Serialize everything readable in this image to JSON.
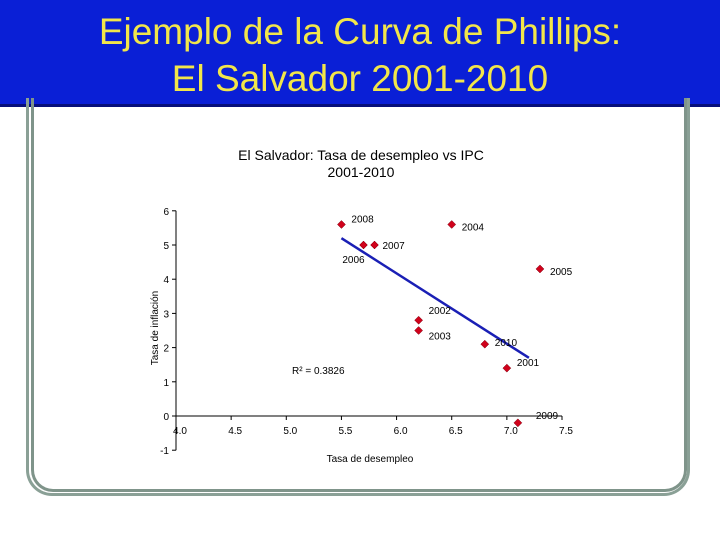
{
  "slide": {
    "title_line1": "Ejemplo de la Curva de Phillips:",
    "title_line2": "El Salvador 2001-2010"
  },
  "colors": {
    "banner": "#0a1fd6",
    "title_text": "#f2e64a",
    "marker": "#d0021b",
    "trendline": "#1a1fb5"
  },
  "chart_data": {
    "type": "scatter",
    "title": "El Salvador: Tasa de desempleo vs IPC",
    "subtitle": "2001-2010",
    "xlabel": "Tasa de desempleo",
    "ylabel": "Tasa de inflación",
    "xlim": [
      4.0,
      7.5
    ],
    "ylim": [
      -1,
      6
    ],
    "x_ticks": [
      "4.0",
      "4.5",
      "5.0",
      "5.5",
      "6.0",
      "6.5",
      "7.0",
      "7.5"
    ],
    "y_ticks": [
      "-1",
      "0",
      "1",
      "2",
      "3",
      "4",
      "5",
      "6"
    ],
    "points": [
      {
        "label": "2001",
        "x": 7.0,
        "y": 1.4
      },
      {
        "label": "2002",
        "x": 6.2,
        "y": 2.8
      },
      {
        "label": "2003",
        "x": 6.2,
        "y": 2.5
      },
      {
        "label": "2004",
        "x": 6.5,
        "y": 5.6
      },
      {
        "label": "2005",
        "x": 7.3,
        "y": 4.3
      },
      {
        "label": "2006",
        "x": 5.7,
        "y": 5.0
      },
      {
        "label": "2007",
        "x": 5.8,
        "y": 5.0
      },
      {
        "label": "2008",
        "x": 5.5,
        "y": 5.6
      },
      {
        "label": "2009",
        "x": 7.1,
        "y": -0.2
      },
      {
        "label": "2010",
        "x": 6.8,
        "y": 2.1
      }
    ],
    "trendline": {
      "x": [
        5.5,
        7.2
      ],
      "y": [
        5.2,
        1.7
      ]
    },
    "r_squared_label": "R² = 0.3826"
  }
}
